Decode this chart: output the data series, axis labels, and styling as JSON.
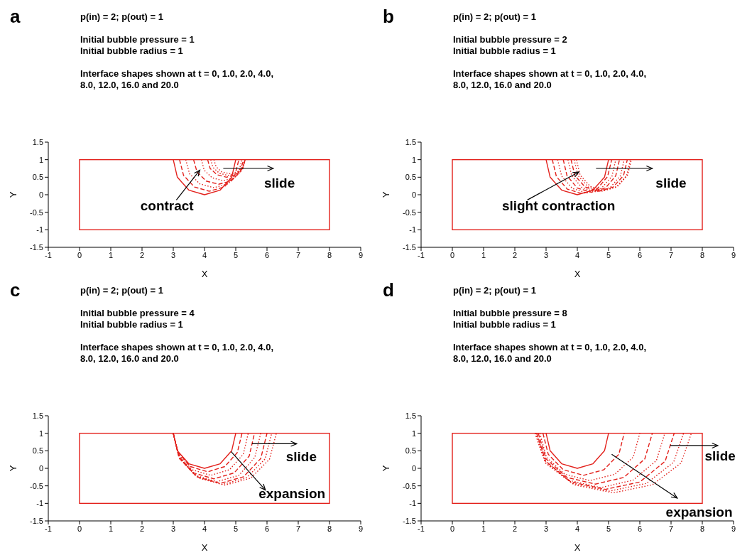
{
  "chart_data": [
    {
      "type": "line",
      "title": "a",
      "subtitle": "p(in) = 2; p(out) = 1",
      "xlabel": "X",
      "ylabel": "Y",
      "xlim": [
        -1,
        9
      ],
      "xticks": [
        -1,
        0,
        1,
        2,
        3,
        4,
        5,
        6,
        7,
        8,
        9
      ],
      "ylim": [
        -1.5,
        1.5
      ],
      "yticks": [
        -1.5,
        -1,
        -0.5,
        0,
        0.5,
        1,
        1.5
      ],
      "grid": false,
      "legend": false,
      "annotations": [
        "Initial bubble pressure = 1",
        "Initial bubble radius = 1",
        "Interface shapes shown at t = 0, 1.0, 2.0, 4.0, 8.0, 12.0, 16.0 and 20.0",
        {
          "text": "contract",
          "x": 3.85,
          "y": 0.7
        },
        "slide"
      ],
      "series": [
        {
          "color": "#e3211c",
          "line_style": "solid",
          "x": [
            3,
            3.13,
            3.5,
            4,
            4.5,
            4.87,
            5
          ],
          "values": [
            1,
            0.5,
            0.13,
            0,
            0.13,
            0.5,
            1
          ]
        },
        {
          "color": "#e3211c",
          "line_style": "dashed",
          "x": [
            3.2,
            3.33,
            3.68,
            4.15,
            4.63,
            4.97,
            5.1
          ],
          "values": [
            1,
            0.55,
            0.22,
            0.1,
            0.22,
            0.55,
            1
          ]
        },
        {
          "color": "#e3211c",
          "line_style": "dotted",
          "x": [
            3.4,
            3.52,
            3.85,
            4.3,
            4.75,
            5.08,
            5.2
          ],
          "values": [
            1,
            0.6,
            0.31,
            0.2,
            0.31,
            0.6,
            1
          ]
        },
        {
          "color": "#e3211c",
          "line_style": "dashed",
          "x": [
            3.65,
            3.76,
            4.05,
            4.45,
            4.85,
            5.14,
            5.25
          ],
          "values": [
            1,
            0.65,
            0.39,
            0.3,
            0.39,
            0.65,
            1
          ]
        },
        {
          "color": "#e3211c",
          "line_style": "dotted",
          "x": [
            3.9,
            3.99,
            4.25,
            4.6,
            4.95,
            5.21,
            5.3
          ],
          "values": [
            1,
            0.7,
            0.48,
            0.4,
            0.48,
            0.7,
            1
          ]
        },
        {
          "color": "#e3211c",
          "line_style": "dashed",
          "x": [
            4.1,
            4.18,
            4.4,
            4.7,
            5,
            5.22,
            5.3
          ],
          "values": [
            1,
            0.75,
            0.57,
            0.5,
            0.57,
            0.75,
            1
          ]
        },
        {
          "color": "#e3211c",
          "line_style": "dotted",
          "x": [
            4.2,
            4.27,
            4.48,
            4.75,
            5.03,
            5.23,
            5.3
          ],
          "values": [
            1,
            0.78,
            0.61,
            0.55,
            0.61,
            0.78,
            1
          ]
        },
        {
          "color": "#e3211c",
          "line_style": "dotted",
          "x": [
            4.3,
            4.37,
            4.55,
            4.8,
            5.05,
            5.23,
            5.3
          ],
          "values": [
            1,
            0.8,
            0.65,
            0.6,
            0.65,
            0.8,
            1
          ]
        }
      ]
    },
    {
      "type": "line",
      "title": "b",
      "subtitle": "p(in) = 2; p(out) = 1",
      "xlabel": "X",
      "ylabel": "Y",
      "xlim": [
        -1,
        9
      ],
      "xticks": [
        -1,
        0,
        1,
        2,
        3,
        4,
        5,
        6,
        7,
        8,
        9
      ],
      "ylim": [
        -1.5,
        1.5
      ],
      "yticks": [
        -1.5,
        -1,
        -0.5,
        0,
        0.5,
        1,
        1.5
      ],
      "grid": false,
      "legend": false,
      "annotations": [
        "Initial bubble pressure = 2",
        "Initial bubble radius = 1",
        "Interface shapes shown at t = 0, 1.0, 2.0, 4.0, 8.0, 12.0, 16.0 and 20.0",
        {
          "text": "slight contraction",
          "x": 4.05,
          "y": 0.65
        },
        "slide"
      ],
      "series": [
        {
          "color": "#e3211c",
          "line_style": "solid",
          "x": [
            3,
            3.13,
            3.5,
            4,
            4.5,
            4.87,
            5
          ],
          "values": [
            1,
            0.5,
            0.13,
            0,
            0.13,
            0.5,
            1
          ]
        },
        {
          "color": "#e3211c",
          "line_style": "dashed",
          "x": [
            3.2,
            3.33,
            3.68,
            4.15,
            4.63,
            4.97,
            5.1
          ],
          "values": [
            1,
            0.52,
            0.16,
            0.03,
            0.16,
            0.52,
            1
          ]
        },
        {
          "color": "#e3211c",
          "line_style": "dotted",
          "x": [
            3.37,
            3.5,
            3.84,
            4.3,
            4.77,
            5.11,
            5.23
          ],
          "values": [
            1,
            0.53,
            0.18,
            0.05,
            0.18,
            0.53,
            1
          ]
        },
        {
          "color": "#e3211c",
          "line_style": "dashed",
          "x": [
            3.55,
            3.67,
            4,
            4.45,
            4.9,
            5.23,
            5.35
          ],
          "values": [
            1,
            0.54,
            0.19,
            0.07,
            0.19,
            0.54,
            1
          ]
        },
        {
          "color": "#e3211c",
          "line_style": "dotted",
          "x": [
            3.7,
            3.82,
            4.15,
            4.6,
            5.05,
            5.38,
            5.5
          ],
          "values": [
            1,
            0.54,
            0.2,
            0.08,
            0.2,
            0.54,
            1
          ]
        },
        {
          "color": "#e3211c",
          "line_style": "dashed",
          "x": [
            3.8,
            3.92,
            4.25,
            4.7,
            5.15,
            5.48,
            5.6
          ],
          "values": [
            1,
            0.55,
            0.22,
            0.1,
            0.22,
            0.55,
            1
          ]
        },
        {
          "color": "#e3211c",
          "line_style": "dotted",
          "x": [
            3.9,
            4.02,
            4.35,
            4.8,
            5.25,
            5.58,
            5.7
          ],
          "values": [
            1,
            0.55,
            0.22,
            0.1,
            0.22,
            0.55,
            1
          ]
        },
        {
          "color": "#e3211c",
          "line_style": "dotted",
          "x": [
            3.97,
            4.09,
            4.41,
            4.85,
            5.29,
            5.61,
            5.73
          ],
          "values": [
            1,
            0.56,
            0.24,
            0.12,
            0.24,
            0.56,
            1
          ]
        }
      ]
    },
    {
      "type": "line",
      "title": "c",
      "subtitle": "p(in) = 2; p(out) = 1",
      "xlabel": "X",
      "ylabel": "Y",
      "xlim": [
        -1,
        9
      ],
      "xticks": [
        -1,
        0,
        1,
        2,
        3,
        4,
        5,
        6,
        7,
        8,
        9
      ],
      "ylim": [
        -1.5,
        1.5
      ],
      "yticks": [
        -1.5,
        -1,
        -0.5,
        0,
        0.5,
        1,
        1.5
      ],
      "grid": false,
      "legend": false,
      "annotations": [
        "Initial bubble pressure = 4",
        "Initial bubble radius = 1",
        "Interface shapes shown at t = 0, 1.0, 2.0, 4.0, 8.0, 12.0, 16.0 and 20.0",
        {
          "text": "slide",
          "x": 5.52,
          "y": 0.7
        },
        {
          "text": "expansion",
          "x": 4.85,
          "y": 0.48
        }
      ],
      "series": [
        {
          "color": "#e3211c",
          "line_style": "solid",
          "x": [
            3,
            3.13,
            3.5,
            4,
            4.5,
            4.87,
            5
          ],
          "values": [
            1,
            0.5,
            0.13,
            0,
            0.13,
            0.5,
            1
          ]
        },
        {
          "color": "#e3211c",
          "line_style": "dashed",
          "x": [
            3,
            3.15,
            3.55,
            4.1,
            4.65,
            5.05,
            5.2
          ],
          "values": [
            1,
            0.45,
            0.05,
            -0.1,
            0.05,
            0.45,
            1
          ]
        },
        {
          "color": "#e3211c",
          "line_style": "dotted",
          "x": [
            3,
            3.16,
            3.6,
            4.2,
            4.8,
            5.24,
            5.4
          ],
          "values": [
            1,
            0.4,
            -0.04,
            -0.2,
            -0.04,
            0.4,
            1
          ]
        },
        {
          "color": "#e3211c",
          "line_style": "dashed",
          "x": [
            3,
            3.17,
            3.65,
            4.3,
            4.95,
            5.43,
            5.6
          ],
          "values": [
            1,
            0.35,
            -0.13,
            -0.3,
            -0.13,
            0.35,
            1
          ]
        },
        {
          "color": "#e3211c",
          "line_style": "dotted",
          "x": [
            3,
            3.19,
            3.7,
            4.4,
            5.1,
            5.61,
            5.8
          ],
          "values": [
            1,
            0.31,
            -0.2,
            -0.38,
            -0.2,
            0.31,
            1
          ]
        },
        {
          "color": "#e3211c",
          "line_style": "dashed",
          "x": [
            3,
            3.2,
            3.75,
            4.5,
            5.25,
            5.8,
            6
          ],
          "values": [
            1,
            0.28,
            -0.24,
            -0.43,
            -0.24,
            0.28,
            1
          ]
        },
        {
          "color": "#e3211c",
          "line_style": "dotted",
          "x": [
            3,
            3.21,
            3.79,
            4.58,
            5.36,
            5.94,
            6.15
          ],
          "values": [
            1,
            0.27,
            -0.26,
            -0.46,
            -0.26,
            0.27,
            1
          ]
        },
        {
          "color": "#e3211c",
          "line_style": "dotted",
          "x": [
            3,
            3.22,
            3.83,
            4.65,
            5.48,
            6.08,
            6.3
          ],
          "values": [
            1,
            0.26,
            -0.28,
            -0.48,
            -0.28,
            0.26,
            1
          ]
        }
      ]
    },
    {
      "type": "line",
      "title": "d",
      "subtitle": "p(in) = 2; p(out) = 1",
      "xlabel": "X",
      "ylabel": "Y",
      "xlim": [
        -1,
        9
      ],
      "xticks": [
        -1,
        0,
        1,
        2,
        3,
        4,
        5,
        6,
        7,
        8,
        9
      ],
      "ylim": [
        -1.5,
        1.5
      ],
      "yticks": [
        -1.5,
        -1,
        -0.5,
        0,
        0.5,
        1,
        1.5
      ],
      "grid": false,
      "legend": false,
      "annotations": [
        "Initial bubble pressure = 8",
        "Initial bubble radius = 1",
        "Interface shapes shown at t = 0, 1.0, 2.0, 4.0, 8.0, 12.0, 16.0 and 20.0",
        {
          "text": "slide",
          "x": 6.97,
          "y": 0.65
        },
        "expansion"
      ],
      "series": [
        {
          "color": "#e3211c",
          "line_style": "solid",
          "x": [
            3,
            3.13,
            3.5,
            4,
            4.5,
            4.87,
            5
          ],
          "values": [
            1,
            0.5,
            0.13,
            0,
            0.13,
            0.5,
            1
          ]
        },
        {
          "color": "#e3211c",
          "line_style": "dashed",
          "x": [
            2.9,
            3.07,
            3.55,
            4.2,
            4.85,
            5.33,
            5.5
          ],
          "values": [
            1,
            0.4,
            -0.04,
            -0.2,
            -0.04,
            0.4,
            1
          ]
        },
        {
          "color": "#e3211c",
          "line_style": "dotted",
          "x": [
            2.8,
            3.01,
            3.6,
            4.4,
            5.2,
            5.79,
            6
          ],
          "values": [
            1,
            0.32,
            -0.17,
            -0.35,
            -0.17,
            0.32,
            1
          ]
        },
        {
          "color": "#e3211c",
          "line_style": "dashed",
          "x": [
            2.75,
            3,
            3.67,
            4.58,
            5.49,
            6.16,
            6.4
          ],
          "values": [
            1,
            0.27,
            -0.26,
            -0.45,
            -0.26,
            0.27,
            1
          ]
        },
        {
          "color": "#e3211c",
          "line_style": "dotted",
          "x": [
            2.7,
            2.97,
            3.72,
            4.75,
            5.78,
            6.53,
            6.8
          ],
          "values": [
            1,
            0.22,
            -0.34,
            -0.55,
            -0.34,
            0.22,
            1
          ]
        },
        {
          "color": "#e3211c",
          "line_style": "dashed",
          "x": [
            2.7,
            2.99,
            3.8,
            4.9,
            6,
            6.81,
            7.1
          ],
          "values": [
            1,
            0.2,
            -0.39,
            -0.6,
            -0.39,
            0.2,
            1
          ]
        },
        {
          "color": "#e3211c",
          "line_style": "dotted",
          "x": [
            2.65,
            2.97,
            3.84,
            5.03,
            6.21,
            7.08,
            7.4
          ],
          "values": [
            1,
            0.17,
            -0.43,
            -0.65,
            -0.43,
            0.17,
            1
          ]
        },
        {
          "color": "#e3211c",
          "line_style": "dotted",
          "x": [
            2.65,
            2.98,
            3.9,
            5.15,
            6.4,
            7.32,
            7.65
          ],
          "values": [
            1,
            0.15,
            -0.47,
            -0.7,
            -0.47,
            0.15,
            1
          ]
        }
      ]
    }
  ]
}
